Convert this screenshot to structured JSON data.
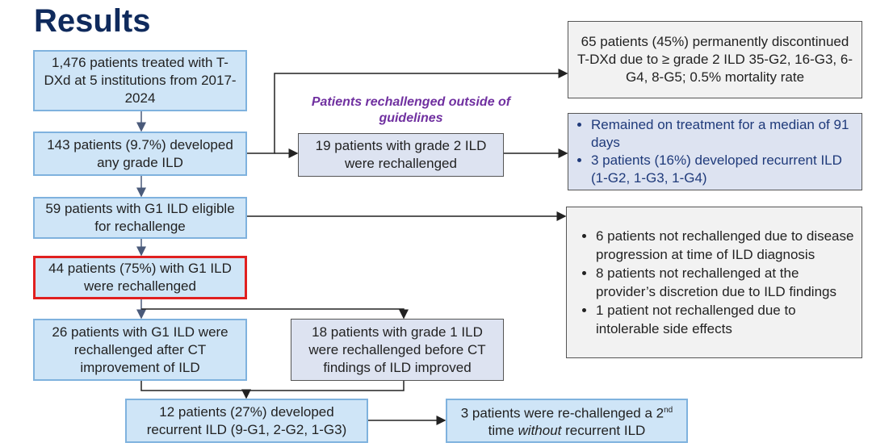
{
  "title": "Results",
  "boxes": {
    "treated": "1,476 patients treated with T-DXd at 5 institutions from 2017-2024",
    "any_ild": "143 patients (9.7%) developed any grade ILD",
    "g1_eligible": "59 patients with G1 ILD eligible for rechallenge",
    "g1_rechallenged": "44 patients (75%) with G1 ILD were rechallenged",
    "after_ct": "26 patients with G1 ILD were rechallenged after CT improvement of ILD",
    "before_ct": "18 patients with grade 1 ILD were rechallenged before CT findings of ILD improved",
    "recurrent": "12 patients (27%) developed recurrent ILD (9-G1, 2-G2, 1-G3)",
    "second_time_pre": "3 patients were re-challenged a 2",
    "second_time_sup": "nd",
    "second_time_mid": " time ",
    "second_time_em": "without",
    "second_time_post": " recurrent ILD",
    "grade2_rechallenged": "19 patients with grade 2 ILD were rechallenged",
    "discontinued": "65 patients (45%) permanently discontinued T-DXd due to ≥ grade 2 ILD 35-G2, 16-G3, 6-G4, 8-G5; 0.5% mortality rate"
  },
  "outside_label": "Patients rechallenged outside of guidelines",
  "grade2_outcomes": [
    "Remained on treatment for a median of 91 days",
    "3 patients (16%) developed recurrent ILD (1-G2, 1-G3, 1-G4)"
  ],
  "not_rechallenged": [
    "6 patients not rechallenged due to disease progression at time of ILD diagnosis",
    "8 patients not rechallenged at the provider’s discretion due to ILD findings",
    "1 patient not rechallenged due to intolerable side effects"
  ],
  "colors": {
    "title": "#0f2a5c",
    "highlight_border": "#e02020",
    "purple_label": "#7030a0",
    "navy_text": "#1f3a7a"
  }
}
